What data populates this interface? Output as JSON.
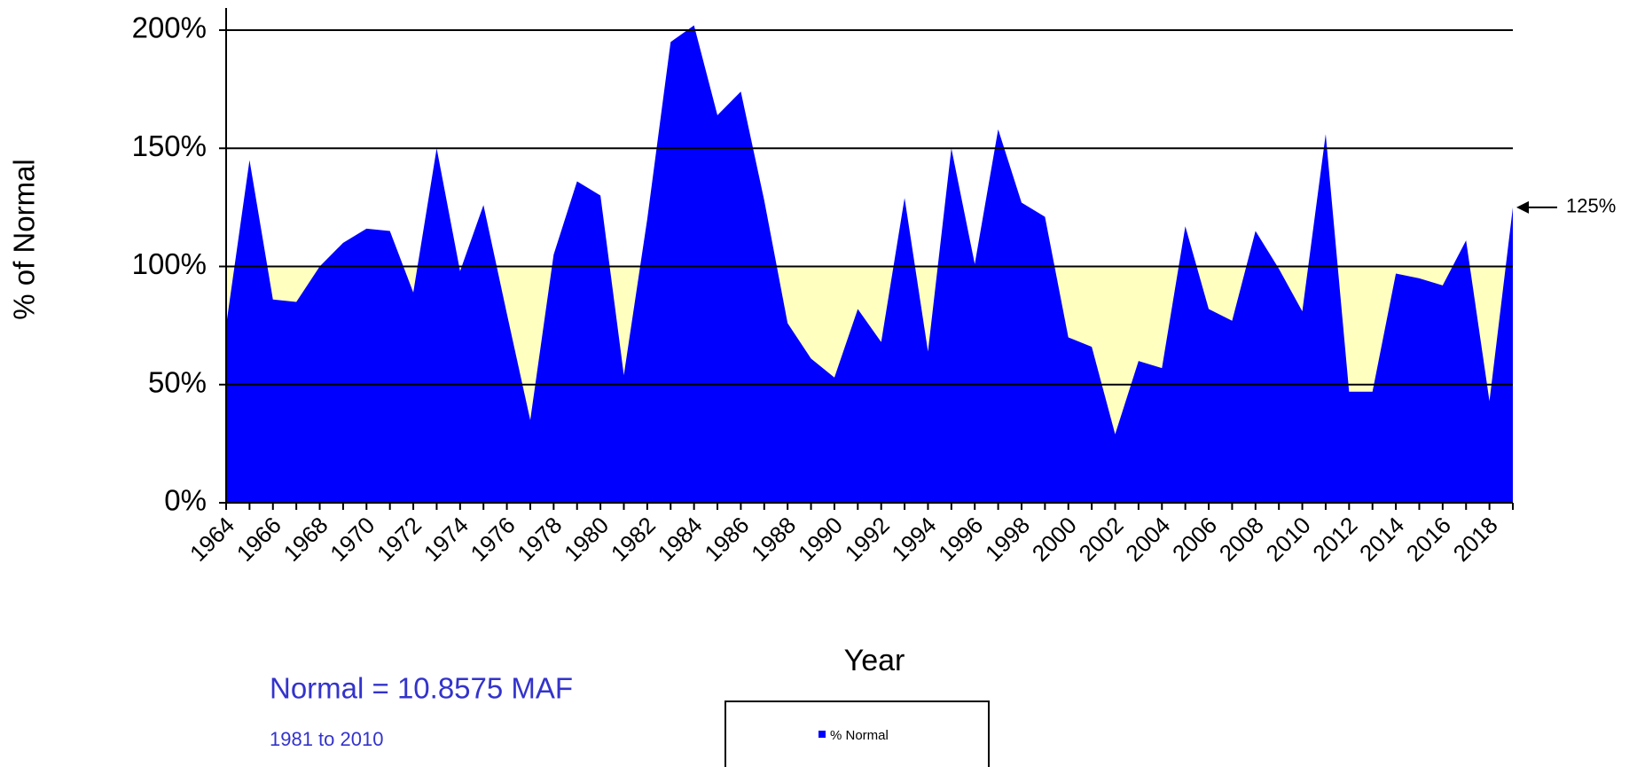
{
  "chart_data": {
    "type": "area",
    "y_label": "% of Normal",
    "x_label": "Year",
    "categories": [
      "1964",
      null,
      "1966",
      null,
      "1968",
      null,
      "1970",
      null,
      "1972",
      null,
      "1974",
      null,
      "1976",
      null,
      "1978",
      null,
      "1980",
      null,
      "1982",
      null,
      "1984",
      null,
      "1986",
      null,
      "1988",
      null,
      "1990",
      null,
      "1992",
      null,
      "1994",
      null,
      "1996",
      null,
      "1998",
      null,
      "2000",
      null,
      "2002",
      null,
      "2004",
      null,
      "2006",
      null,
      "2008",
      null,
      "2010",
      null,
      "2012",
      null,
      "2014",
      null,
      "2016",
      null,
      "2018",
      null
    ],
    "series": [
      {
        "name": "% Normal",
        "color": "#0000ff",
        "values": [
          75,
          145,
          86,
          85,
          100,
          110,
          116,
          115,
          89,
          150,
          98,
          126,
          80,
          35,
          105,
          136,
          130,
          54,
          120,
          195,
          202,
          164,
          174,
          128,
          76,
          61,
          53,
          82,
          68,
          129,
          64,
          150,
          101,
          158,
          127,
          121,
          70,
          66,
          29,
          60,
          57,
          117,
          82,
          77,
          115,
          99,
          81,
          156,
          47,
          47,
          97,
          95,
          92,
          111,
          43,
          125
        ]
      }
    ],
    "ylim": [
      0,
      200
    ],
    "yticks": [
      {
        "value": 0,
        "label": "0%"
      },
      {
        "value": 50,
        "label": "50%"
      },
      {
        "value": 100,
        "label": "100%"
      },
      {
        "value": 150,
        "label": "150%"
      },
      {
        "value": 200,
        "label": "200%"
      }
    ],
    "grid": true,
    "normal_band": {
      "from": 0,
      "to": 100,
      "color": "#ffffc0"
    },
    "annotations": [
      "125%",
      "Normal = 10.8575 MAF",
      "1981 to 2010"
    ]
  }
}
